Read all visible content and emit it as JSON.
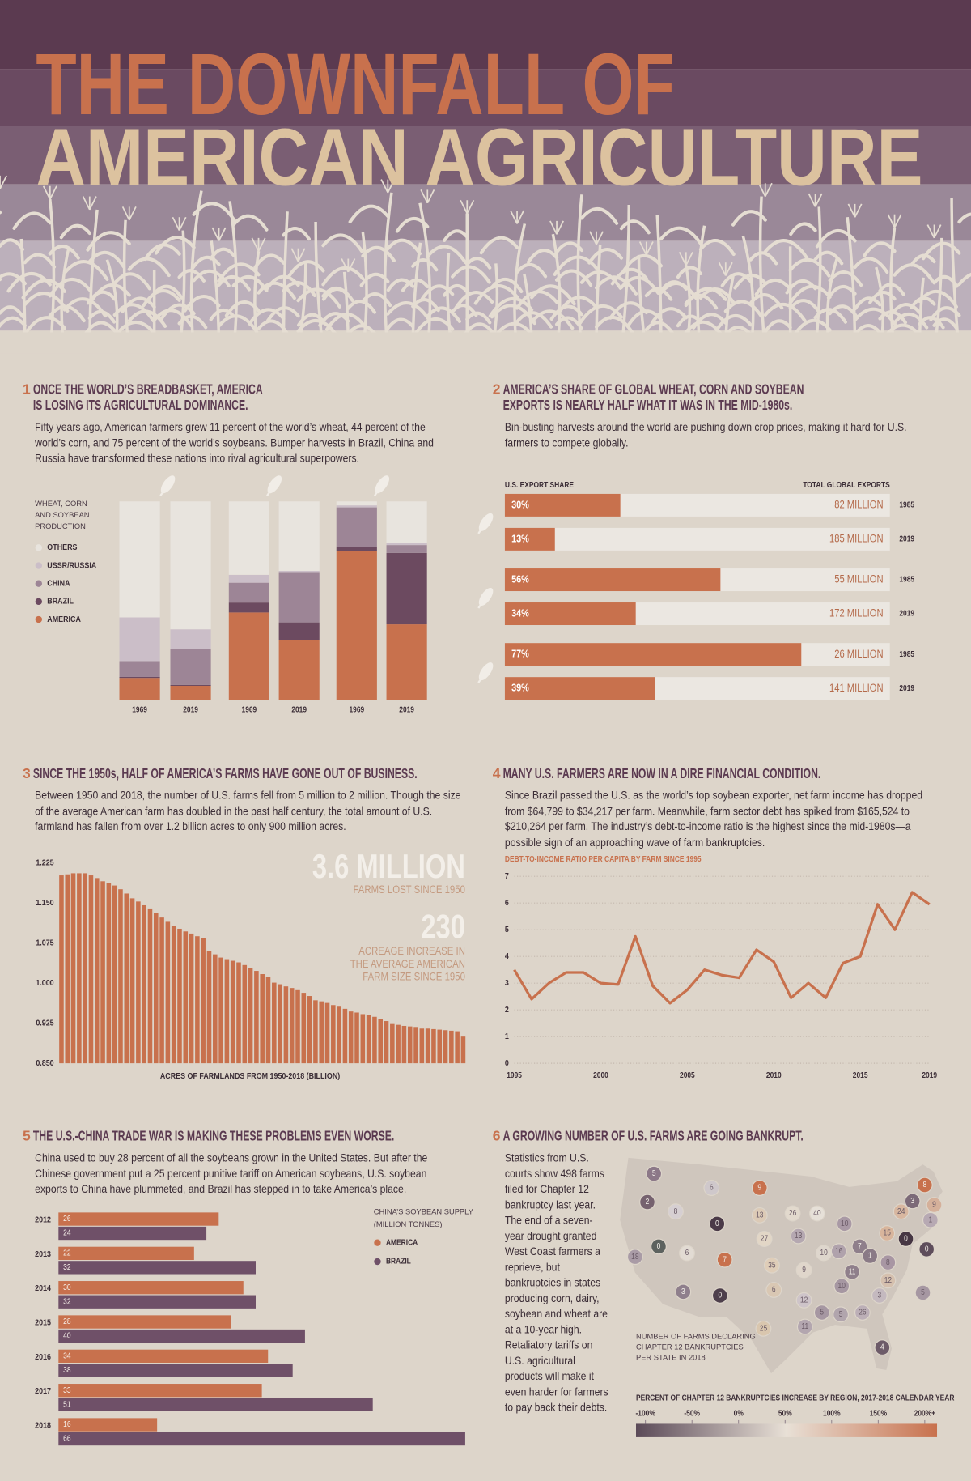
{
  "title": {
    "line1": "THE DOWNFALL OF",
    "line2": "AMERICAN AGRICULTURE"
  },
  "sections": [
    {
      "number": "1",
      "heading": [
        "ONCE THE WORLD’S BREADBASKET, AMERICA",
        "IS LOSING ITS AGRICULTURAL DOMINANCE."
      ],
      "body": "Fifty years ago, American farmers grew 11 percent of the world’s wheat, 44 percent of the world’s corn, and 75 percent of the world’s soybeans. Bumper harvests in Brazil, China and Russia have transformed these nations into rival agricultural superpowers."
    },
    {
      "number": "2",
      "heading": [
        "AMERICA’S SHARE OF GLOBAL WHEAT, CORN AND SOYBEAN",
        "EXPORTS IS NEARLY HALF WHAT IT WAS IN THE MID-1980s."
      ],
      "body": "Bin-busting harvests around the world are pushing down crop prices, making it hard for U.S. farmers to compete globally."
    },
    {
      "number": "3",
      "heading": [
        "SINCE THE 1950s, HALF OF AMERICA’S FARMS HAVE GONE OUT OF BUSINESS."
      ],
      "body": "Between 1950 and 2018, the number of U.S. farms fell from 5 million to 2 million. Though the size of the average American farm has doubled in the past half century, the total amount of U.S. farmland has fallen from over 1.2 billion acres to only 900 million acres."
    },
    {
      "number": "4",
      "heading": [
        "MANY U.S. FARMERS ARE NOW IN A DIRE FINANCIAL CONDITION."
      ],
      "body": "Since Brazil passed the U.S. as the world’s top soybean exporter, net farm income has dropped from $64,799 to $34,217 per farm. Meanwhile, farm sector debt has spiked from $165,524 to $210,264 per farm. The industry’s debt-to-income ratio is the highest since the mid-1980s—a possible sign of an approaching wave of farm bankruptcies."
    },
    {
      "number": "5",
      "heading": [
        "THE U.S.-CHINA TRADE WAR IS MAKING THESE PROBLEMS EVEN WORSE."
      ],
      "body": "China used to buy 28 percent of all the soybeans grown in the United States. But after the Chinese government put a 25 percent punitive tariff on American soybeans, U.S. soybean exports to China have plummeted, and Brazil has stepped in to take America’s place."
    },
    {
      "number": "6",
      "heading": [
        "A GROWING NUMBER OF U.S. FARMS ARE GOING BANKRUPT."
      ],
      "body": "Statistics from U.S. courts show 498 farms filed for Chapter 12 bankruptcy last year. The end of a seven-year drought granted West Coast farmers a reprieve, but bankruptcies in states producing corn, dairy, soybean and wheat are at a 10-year high. Retaliatory tariffs on U.S. agricultural products will make it even harder for farmers to pay back their debts."
    }
  ],
  "chart_data": [
    {
      "type": "stacked_bar",
      "legend_title": "WHEAT, CORN AND SOYBEAN PRODUCTION",
      "categories": [
        "1969",
        "2019",
        "1969",
        "2019",
        "1969",
        "2019"
      ],
      "ylim": [
        0,
        100
      ],
      "series": [
        {
          "name": "AMERICA",
          "color": "#c8714d",
          "values": [
            11,
            7,
            44,
            30,
            75,
            38
          ]
        },
        {
          "name": "BRAZIL",
          "color": "#6c4a60",
          "values": [
            0.5,
            0.5,
            5,
            9,
            2,
            36
          ]
        },
        {
          "name": "CHINA",
          "color": "#9d8596",
          "values": [
            8,
            18,
            10,
            25,
            20,
            4
          ]
        },
        {
          "name": "USSR/RUSSIA",
          "color": "#cbbec8",
          "values": [
            22,
            10,
            4,
            1,
            1,
            1
          ]
        },
        {
          "name": "OTHERS",
          "color": "#e8e4de",
          "values": [
            58.5,
            64.5,
            37,
            35,
            2,
            21
          ]
        }
      ]
    },
    {
      "type": "hbar",
      "categories": [
        "1985",
        "2019",
        "1985",
        "2019",
        "1985",
        "2019"
      ],
      "xlim": [
        0,
        100
      ],
      "series": [
        {
          "name": "U.S. EXPORT SHARE",
          "color": "#c8714d",
          "values": [
            30,
            13,
            56,
            34,
            77,
            39
          ],
          "value_labels": [
            "30%",
            "13%",
            "56%",
            "34%",
            "77%",
            "39%"
          ]
        }
      ],
      "totals": {
        "name": "TOTAL GLOBAL EXPORTS",
        "values": [
          82,
          185,
          55,
          172,
          26,
          141
        ],
        "value_labels": [
          "82 MILLION",
          "185 MILLION",
          "55 MILLION",
          "172 MILLION",
          "26 MILLION",
          "141 MILLION"
        ]
      }
    },
    {
      "type": "bar",
      "xlabel": "ACRES OF FARMLANDS FROM 1950-2018 (BILLION)",
      "color": "#c8714d",
      "ylim": [
        0.85,
        1.225
      ],
      "yticks": [
        {
          "value": 0.85,
          "label": "0.850"
        },
        0.925,
        {
          "value": 1.0,
          "label": "1.000"
        },
        1.075,
        {
          "value": 1.15,
          "label": "1.150"
        },
        1.225
      ],
      "values": [
        1.202,
        1.204,
        1.206,
        1.206,
        1.206,
        1.202,
        1.197,
        1.191,
        1.188,
        1.183,
        1.176,
        1.168,
        1.159,
        1.153,
        1.146,
        1.14,
        1.131,
        1.123,
        1.115,
        1.107,
        1.102,
        1.097,
        1.093,
        1.088,
        1.084,
        1.061,
        1.054,
        1.048,
        1.045,
        1.042,
        1.039,
        1.034,
        1.028,
        1.023,
        1.017,
        1.012,
        1.001,
        0.998,
        0.994,
        0.991,
        0.987,
        0.982,
        0.976,
        0.968,
        0.966,
        0.963,
        0.959,
        0.956,
        0.952,
        0.947,
        0.945,
        0.942,
        0.94,
        0.937,
        0.933,
        0.929,
        0.925,
        0.922,
        0.92,
        0.919,
        0.918,
        0.915,
        0.915,
        0.914,
        0.913,
        0.912,
        0.911,
        0.91,
        0.9
      ],
      "annotations": [
        {
          "headline": "3.6 MILLION",
          "caption": [
            "FARMS LOST SINCE 1950"
          ]
        },
        {
          "headline": "230",
          "caption": [
            "ACREAGE INCREASE IN",
            "THE AVERAGE AMERICAN",
            "FARM SIZE SINCE 1950"
          ]
        }
      ]
    },
    {
      "type": "line",
      "title": "DEBT-TO-INCOME RATIO PER CAPITA BY FARM SINCE 1995",
      "color": "#c8714d",
      "grid": true,
      "x": [
        1995,
        1996,
        1997,
        1998,
        1999,
        2000,
        2001,
        2002,
        2003,
        2004,
        2005,
        2006,
        2007,
        2008,
        2009,
        2010,
        2011,
        2012,
        2013,
        2014,
        2015,
        2016,
        2017,
        2018,
        2019
      ],
      "values": [
        3.5,
        2.4,
        3.0,
        3.4,
        3.4,
        3.0,
        2.95,
        4.75,
        2.9,
        2.25,
        2.75,
        3.5,
        3.3,
        3.2,
        4.25,
        3.8,
        2.45,
        3.0,
        2.45,
        3.75,
        4.0,
        5.95,
        5.0,
        6.4,
        5.95
      ],
      "xlim": [
        1995,
        2019
      ],
      "xticks": [
        1995,
        2000,
        2005,
        2010,
        2015,
        2019
      ],
      "ylim": [
        0,
        7
      ],
      "yticks": [
        0,
        1,
        2,
        3,
        4,
        5,
        6,
        7
      ]
    },
    {
      "type": "grouped_hbar",
      "legend_title": "CHINA’S SOYBEAN SUPPLY (MILLION TONNES)",
      "categories": [
        "2012",
        "2013",
        "2014",
        "2015",
        "2016",
        "2017",
        "2018"
      ],
      "xlim": [
        0,
        66
      ],
      "series": [
        {
          "name": "AMERICA",
          "color": "#c8714d",
          "values": [
            26,
            22,
            30,
            28,
            34,
            33,
            16
          ]
        },
        {
          "name": "BRAZIL",
          "color": "#6f5068",
          "values": [
            24,
            32,
            32,
            40,
            38,
            51,
            66
          ]
        }
      ]
    },
    {
      "type": "map",
      "note": "NUMBER OF FARMS DECLARING CHAPTER 12 BANKRUPTCIES PER STATE IN 2018",
      "legend_title": "PERCENT OF CHAPTER 12 BANKRUPTCIES INCREASE BY REGION, 2017-2018 CALENDAR YEAR",
      "values": [
        5,
        2,
        18,
        0,
        8,
        6,
        0,
        6,
        7,
        3,
        0,
        9,
        13,
        27,
        35,
        6,
        25,
        26,
        13,
        9,
        12,
        11,
        40,
        10,
        10,
        16,
        7,
        11,
        10,
        5,
        5,
        26,
        4,
        3,
        12,
        8,
        1,
        15,
        24,
        8,
        3,
        9,
        1,
        0,
        0,
        5
      ],
      "colors": [
        "#8c7888",
        "#76626f",
        "#a99ba6",
        "#5d625f",
        "#d6cfd2",
        "#cfc8cb",
        "#4b3a48",
        "#e2dbd3",
        "#c8714d",
        "#8f7f8c",
        "#4e3f4c",
        "#c8714d",
        "#dccab6",
        "#e2d6c6",
        "#dfcdb8",
        "#d9c7b3",
        "#d9c6ae",
        "#e2d9cd",
        "#b5a8b1",
        "#e0d6cb",
        "#cec4c9",
        "#b3a6af",
        "#e6e0d8",
        "#ded6cd",
        "#a999a5",
        "#b0a2ac",
        "#8f7f8b",
        "#8f7f8b",
        "#a697a2",
        "#a697a2",
        "#b1a5ad",
        "#bcafb7",
        "#6d5b69",
        "#c4b9bf",
        "#d5c0ae",
        "#a896a3",
        "#8a7a86",
        "#d8b59c",
        "#d8b7a0",
        "#c8714d",
        "#7c6a78",
        "#d5b09a",
        "#b7a9b3",
        "#5e4d5b",
        "#463643",
        "#a697a2"
      ],
      "xlim": [
        -100,
        200
      ],
      "xticks": [
        {
          "value": -100,
          "label": "-100%"
        },
        {
          "value": -50,
          "label": "-50%"
        },
        {
          "value": 0,
          "label": "0%"
        },
        {
          "value": 50,
          "label": "50%"
        },
        {
          "value": 100,
          "label": "100%"
        },
        {
          "value": 150,
          "label": "150%"
        },
        {
          "value": 200,
          "label": "200%+"
        }
      ],
      "gradient": [
        "#5b4a58",
        "#e8e0d6",
        "#c8714d"
      ]
    }
  ]
}
